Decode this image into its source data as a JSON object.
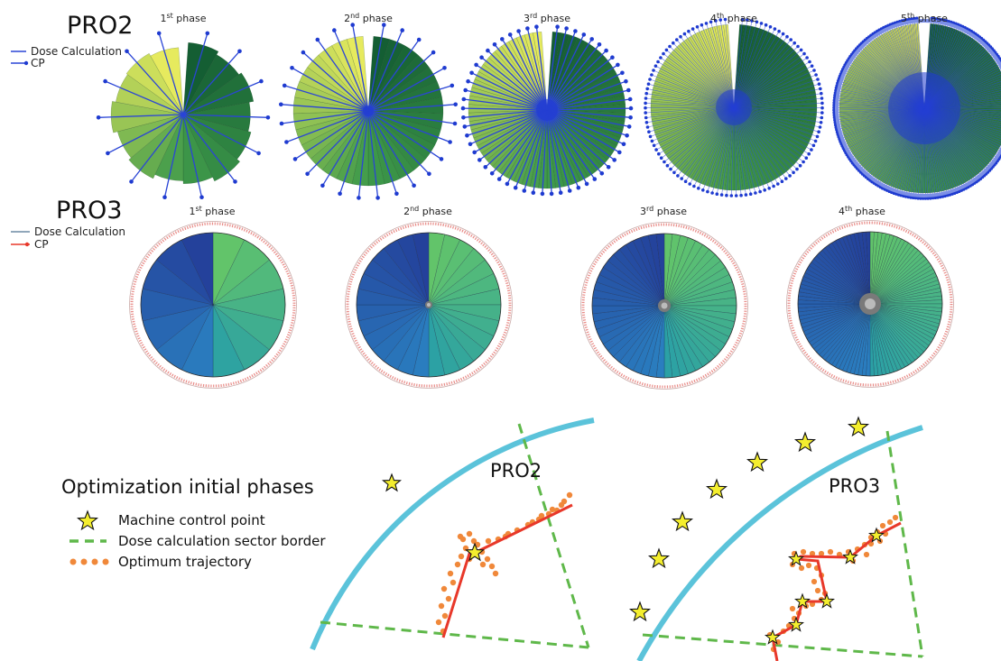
{
  "pro2": {
    "title": "PRO2",
    "legend": {
      "dose": "Dose Calculation",
      "cp": "CP"
    },
    "phases": [
      {
        "ord": "1",
        "sup": "st",
        "word": " phase",
        "sectors": 14,
        "cps": 14
      },
      {
        "ord": "2",
        "sup": "nd",
        "word": " phase",
        "sectors": 28,
        "cps": 28
      },
      {
        "ord": "3",
        "sup": "rd",
        "word": " phase",
        "sectors": 56,
        "cps": 56
      },
      {
        "ord": "4",
        "sup": "th",
        "word": " phase",
        "sectors": 112,
        "cps": 112
      },
      {
        "ord": "5",
        "sup": "th",
        "word": " phase",
        "sectors": 224,
        "cps": 224
      }
    ]
  },
  "pro3": {
    "title": "PRO3",
    "legend": {
      "dose": "Dose Calculation",
      "cp": "CP"
    },
    "phases": [
      {
        "ord": "1",
        "sup": "st",
        "word": " phase",
        "sectors": 14
      },
      {
        "ord": "2",
        "sup": "nd",
        "word": " phase",
        "sectors": 28
      },
      {
        "ord": "3",
        "sup": "rd",
        "word": " phase",
        "sectors": 56
      },
      {
        "ord": "4",
        "sup": "th",
        "word": " phase",
        "sectors": 112
      }
    ]
  },
  "optimization": {
    "title": "Optimization initial phases",
    "legend": [
      {
        "key": "star",
        "label": "Machine control point"
      },
      {
        "key": "dash",
        "label": "Dose calculation sector border"
      },
      {
        "key": "dots",
        "label": "Optimum trajectory"
      }
    ],
    "panel_pro2_label": "PRO2",
    "panel_pro3_label": "PRO3"
  },
  "colors": {
    "cp_line": "#2a45d6",
    "cp_dot": "#1f3bd0",
    "pro3_cp_ring": "#e88a86",
    "arc": "#5bc3da",
    "border_dash": "#5fb84a",
    "trajectory_line": "#e8382a",
    "trajectory_dots": "#f0883a",
    "star_fill": "#f4ee2e"
  }
}
